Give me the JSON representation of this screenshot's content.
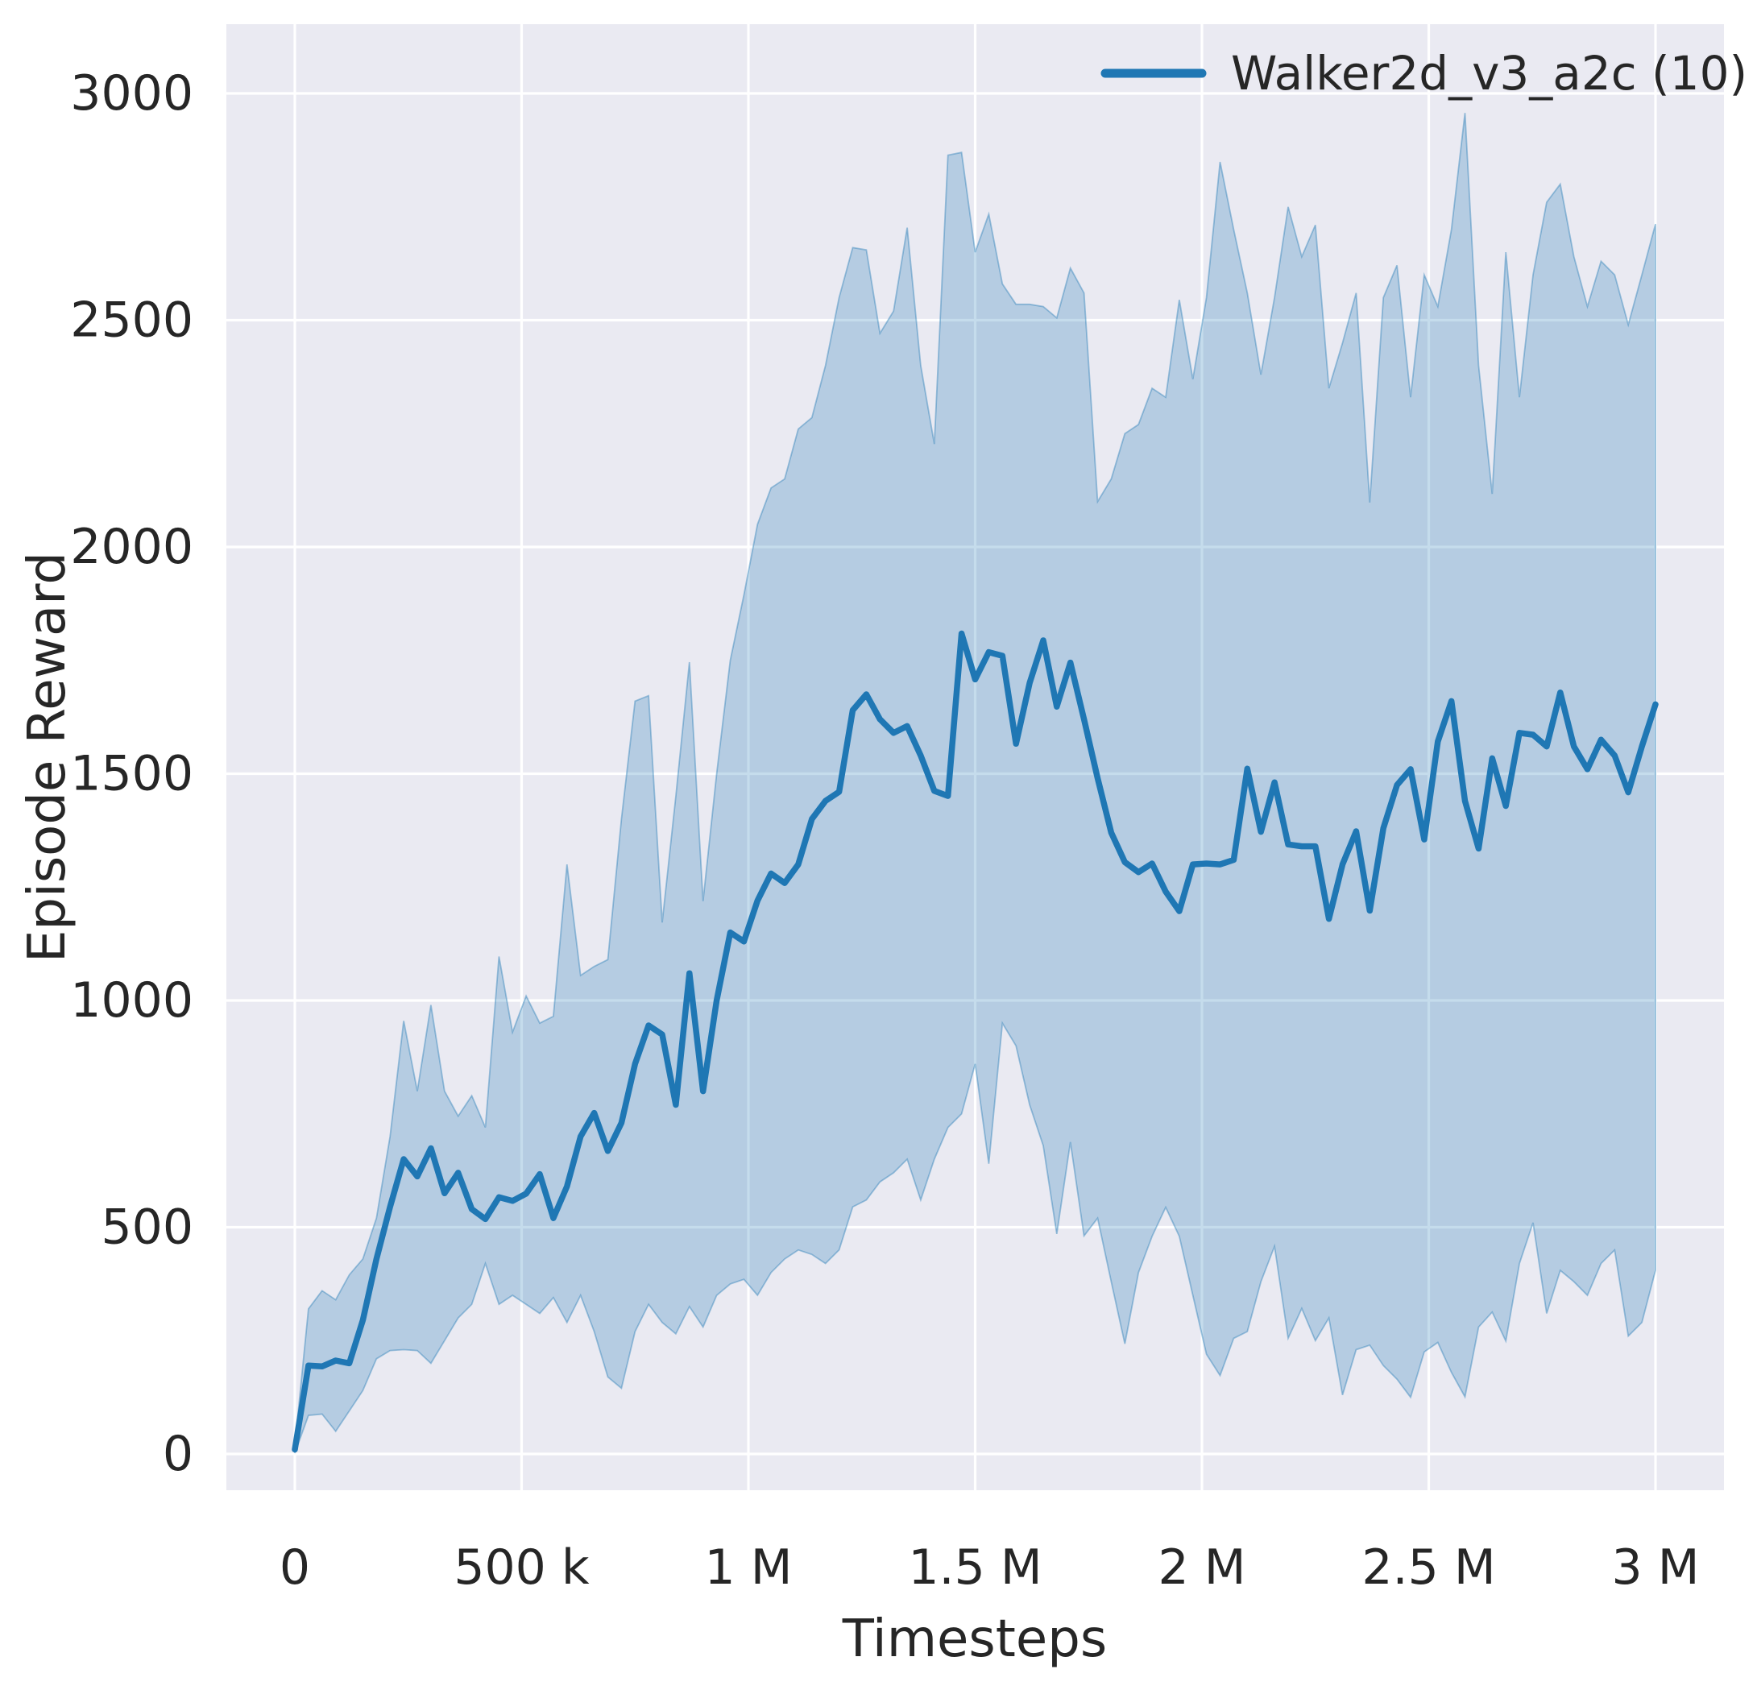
{
  "figure": {
    "xlabel": "Timesteps",
    "ylabel": "Episode Reward",
    "legend": {
      "label": "Walker2d_v3_a2c (10)"
    }
  },
  "chart_data": {
    "type": "line",
    "title": "",
    "xlabel": "Timesteps",
    "ylabel": "Episode Reward",
    "grid": true,
    "legend_position": "upper right",
    "legend_entries": [
      "Walker2d_v3_a2c (10)"
    ],
    "xlim": [
      0,
      3000000
    ],
    "ylim": [
      0,
      3000
    ],
    "x_ticks": {
      "values": [
        0,
        500000,
        1000000,
        1500000,
        2000000,
        2500000,
        3000000
      ],
      "labels": [
        "0",
        "500 k",
        "1 M",
        "1.5 M",
        "2 M",
        "2.5 M",
        "3 M"
      ]
    },
    "y_ticks": {
      "values": [
        0,
        500,
        1000,
        1500,
        2000,
        2500,
        3000
      ],
      "labels": [
        "0",
        "500",
        "1000",
        "1500",
        "2000",
        "2500",
        "3000"
      ]
    },
    "colors": {
      "mean_line": "#1f77b4",
      "band_fill": "rgba(31,119,180,0.26)",
      "band_edge": "rgba(31,119,180,0.40)",
      "panel": "#eaeaf2",
      "grid": "#ffffff",
      "text": "#262626"
    },
    "x": [
      0,
      30000,
      60000,
      90000,
      120000,
      150000,
      180000,
      210000,
      240000,
      270000,
      300000,
      330000,
      360000,
      390000,
      420000,
      450000,
      480000,
      510000,
      540000,
      570000,
      600000,
      630000,
      660000,
      690000,
      720000,
      750000,
      780000,
      810000,
      840000,
      870000,
      900000,
      930000,
      960000,
      990000,
      1020000,
      1050000,
      1080000,
      1110000,
      1140000,
      1170000,
      1200000,
      1230000,
      1260000,
      1290000,
      1320000,
      1350000,
      1380000,
      1410000,
      1440000,
      1470000,
      1500000,
      1530000,
      1560000,
      1590000,
      1620000,
      1650000,
      1680000,
      1710000,
      1740000,
      1770000,
      1800000,
      1830000,
      1860000,
      1890000,
      1920000,
      1950000,
      1980000,
      2010000,
      2040000,
      2070000,
      2100000,
      2130000,
      2160000,
      2190000,
      2220000,
      2250000,
      2280000,
      2310000,
      2340000,
      2370000,
      2400000,
      2430000,
      2460000,
      2490000,
      2520000,
      2550000,
      2580000,
      2610000,
      2640000,
      2670000,
      2700000,
      2730000,
      2760000,
      2790000,
      2820000,
      2850000,
      2880000,
      2910000,
      2940000,
      2970000,
      3000000
    ],
    "series": [
      {
        "name": "Walker2d_v3_a2c (10)",
        "role": "mean",
        "y": [
          10,
          195,
          193,
          206,
          200,
          295,
          430,
          545,
          650,
          612,
          674,
          575,
          620,
          540,
          518,
          566,
          558,
          574,
          617,
          520,
          590,
          700,
          752,
          668,
          730,
          860,
          945,
          925,
          770,
          1060,
          800,
          1000,
          1150,
          1130,
          1220,
          1280,
          1259,
          1300,
          1400,
          1440,
          1460,
          1640,
          1675,
          1620,
          1590,
          1605,
          1540,
          1462,
          1451,
          1809,
          1708,
          1768,
          1760,
          1566,
          1700,
          1794,
          1648,
          1745,
          1620,
          1490,
          1370,
          1305,
          1283,
          1302,
          1240,
          1197,
          1300,
          1302,
          1300,
          1310,
          1511,
          1372,
          1481,
          1344,
          1340,
          1340,
          1180,
          1300,
          1373,
          1198,
          1380,
          1475,
          1510,
          1355,
          1571,
          1660,
          1440,
          1335,
          1534,
          1429,
          1590,
          1586,
          1560,
          1679,
          1560,
          1510,
          1575,
          1540,
          1459,
          1560,
          1653
        ]
      },
      {
        "name": "band_upper",
        "role": "band-upper",
        "y": [
          18,
          320,
          360,
          340,
          395,
          430,
          520,
          700,
          955,
          800,
          990,
          800,
          745,
          790,
          720,
          1097,
          930,
          1010,
          950,
          965,
          1300,
          1055,
          1075,
          1090,
          1400,
          1660,
          1672,
          1172,
          1450,
          1746,
          1219,
          1500,
          1750,
          1894,
          2050,
          2130,
          2150,
          2260,
          2285,
          2400,
          2550,
          2660,
          2655,
          2471,
          2520,
          2704,
          2400,
          2227,
          2864,
          2870,
          2650,
          2734,
          2580,
          2535,
          2535,
          2530,
          2505,
          2615,
          2560,
          2100,
          2150,
          2250,
          2270,
          2350,
          2330,
          2545,
          2370,
          2550,
          2849,
          2700,
          2560,
          2380,
          2550,
          2750,
          2640,
          2710,
          2350,
          2450,
          2560,
          2098,
          2550,
          2621,
          2330,
          2600,
          2530,
          2700,
          2957,
          2400,
          2117,
          2650,
          2330,
          2600,
          2760,
          2800,
          2640,
          2530,
          2630,
          2600,
          2490,
          2600,
          2712
        ]
      },
      {
        "name": "band_lower",
        "role": "band-lower",
        "y": [
          2,
          85,
          88,
          50,
          95,
          140,
          210,
          228,
          230,
          228,
          200,
          250,
          300,
          330,
          420,
          330,
          350,
          330,
          310,
          345,
          290,
          350,
          270,
          170,
          145,
          270,
          330,
          290,
          265,
          325,
          280,
          350,
          375,
          385,
          350,
          400,
          430,
          450,
          440,
          420,
          450,
          545,
          560,
          600,
          620,
          650,
          560,
          650,
          720,
          750,
          860,
          640,
          950,
          900,
          770,
          680,
          485,
          688,
          481,
          520,
          380,
          243,
          400,
          480,
          544,
          480,
          350,
          220,
          173,
          255,
          270,
          380,
          458,
          255,
          321,
          250,
          300,
          130,
          230,
          240,
          195,
          165,
          125,
          225,
          246,
          180,
          126,
          280,
          313,
          249,
          420,
          510,
          310,
          405,
          380,
          350,
          420,
          450,
          260,
          290,
          405
        ]
      }
    ]
  }
}
